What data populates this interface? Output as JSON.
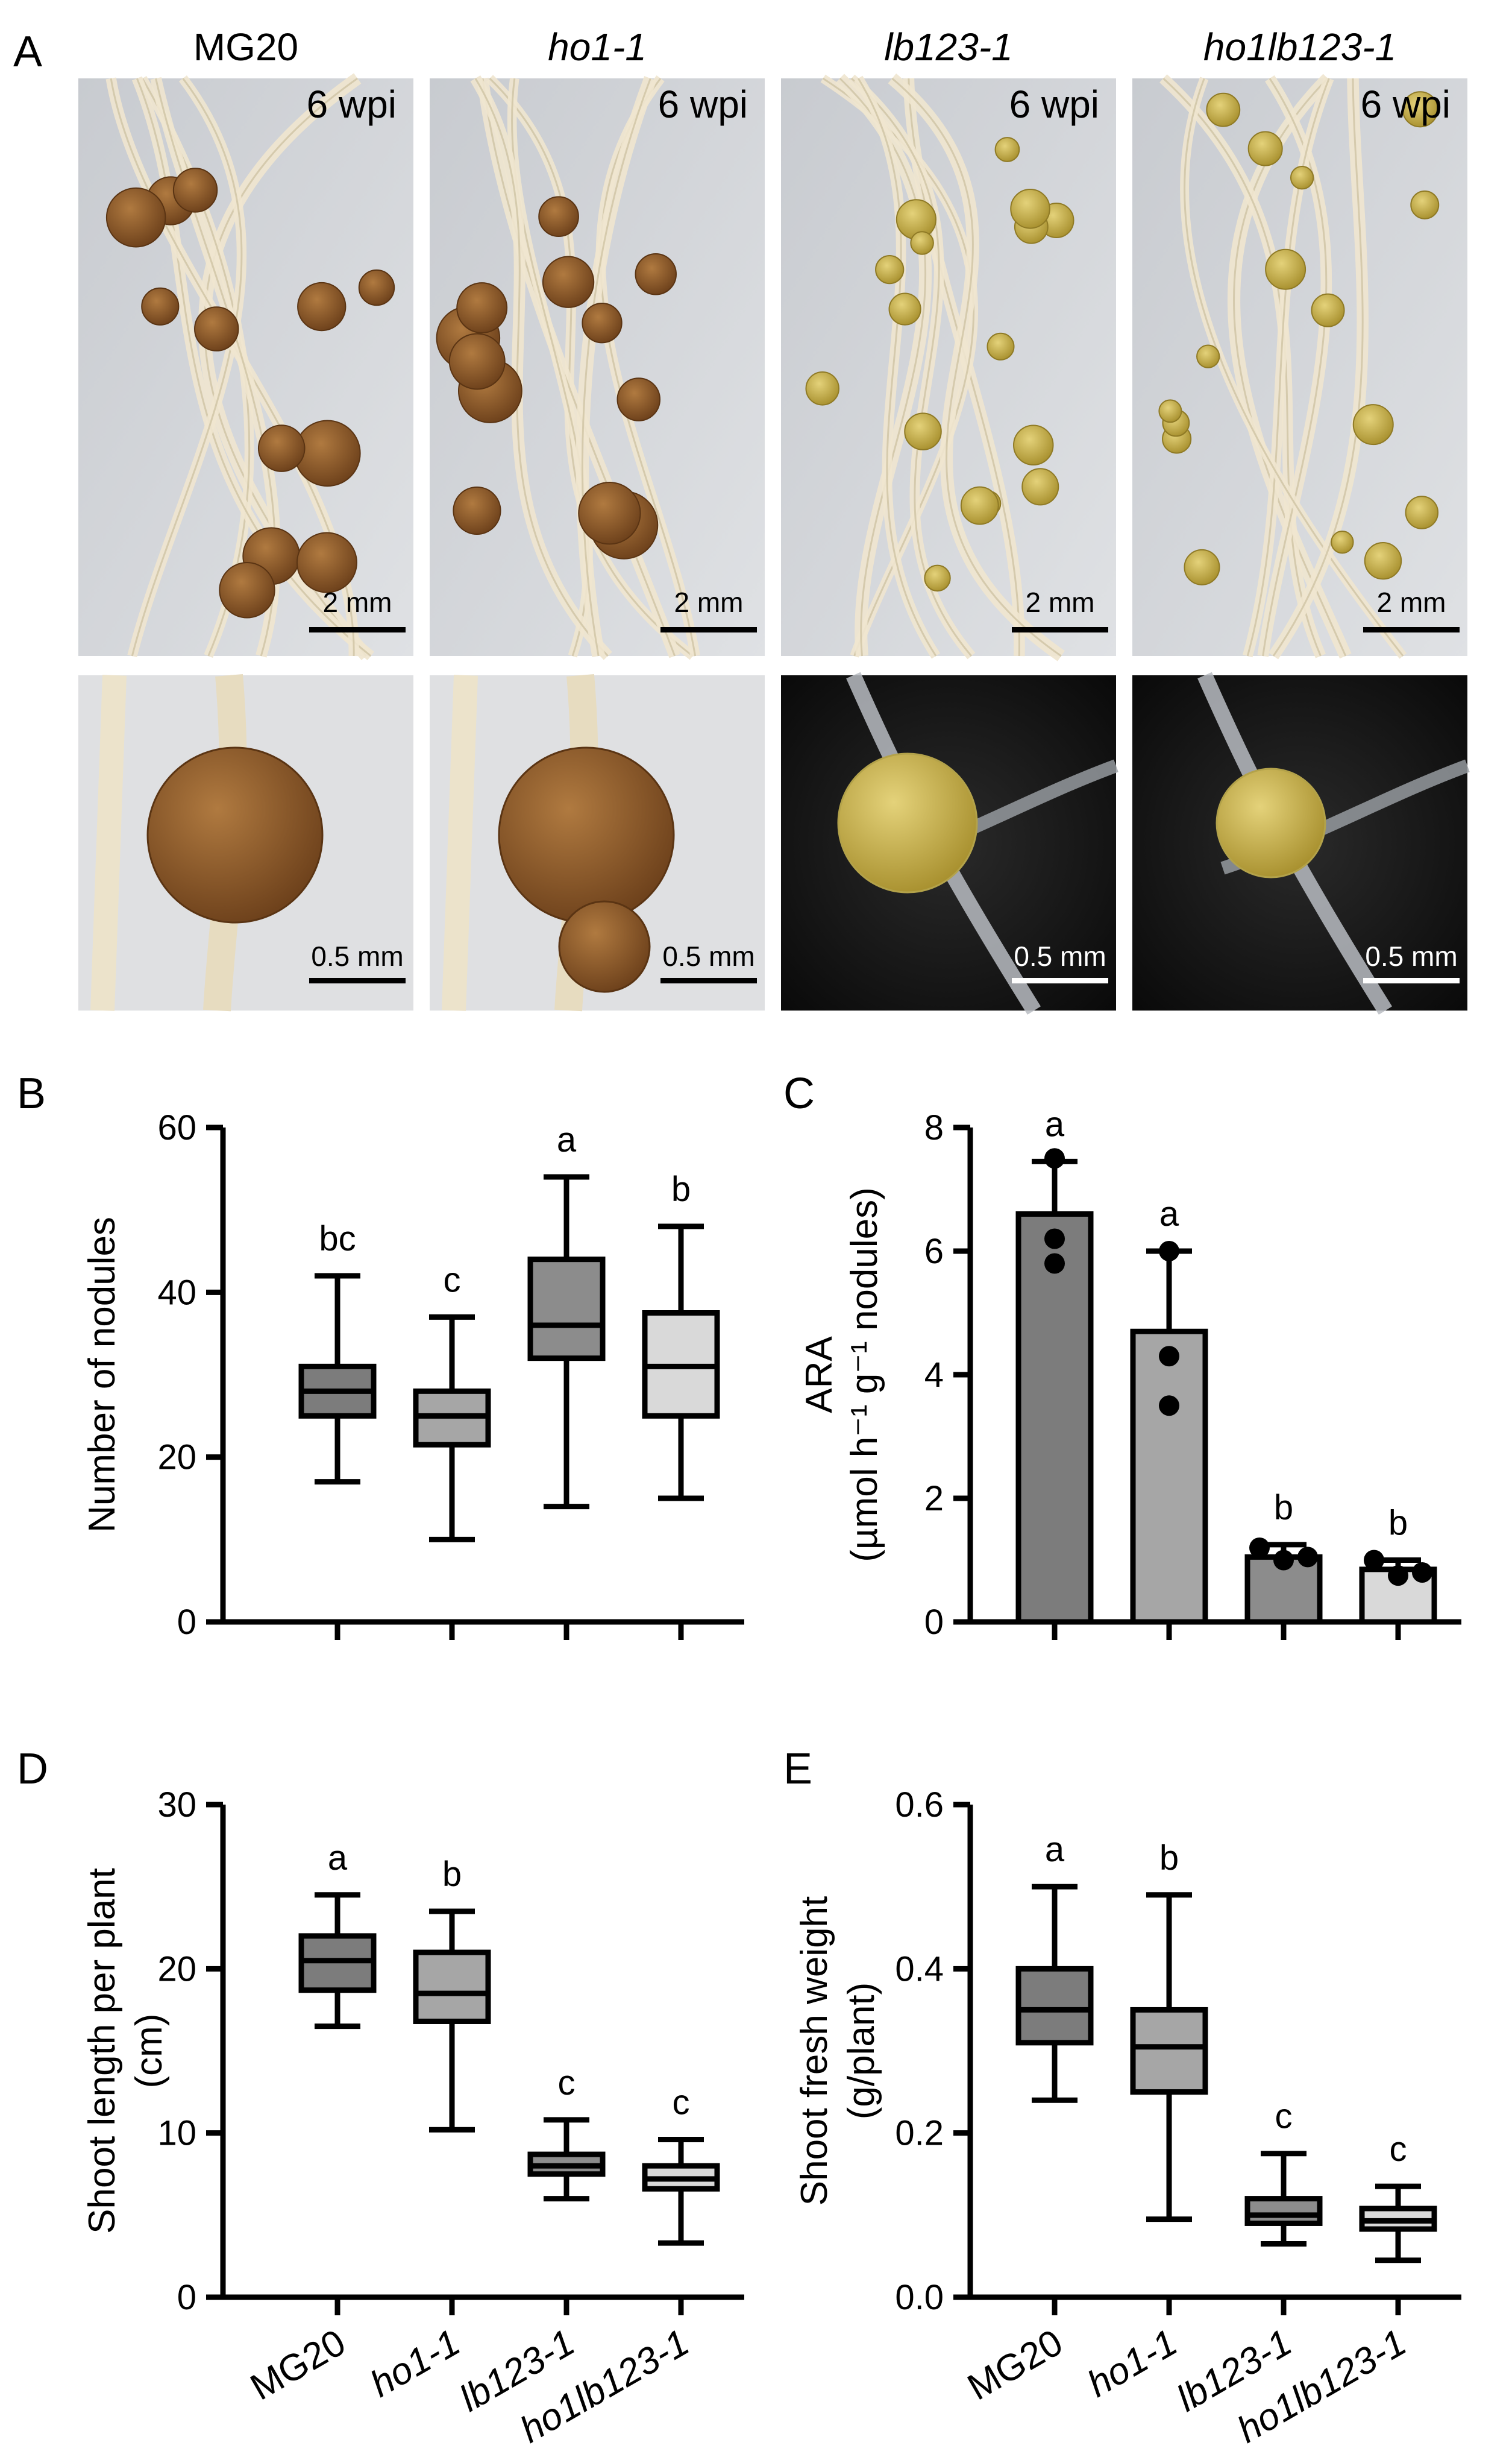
{
  "panels": {
    "A": {
      "letter": "A",
      "genotypes": [
        {
          "label": "MG20",
          "italic": false
        },
        {
          "label": "ho1-1",
          "italic": true
        },
        {
          "label": "lb123-1",
          "italic": true
        },
        {
          "label": "ho1lb123-1",
          "italic": true
        }
      ],
      "time_label": "6 wpi",
      "scale_top": "2 mm",
      "scale_bottom": "0.5 mm",
      "nodule_colors": {
        "MG20": "#8a5a2b",
        "ho1-1": "#8a5a2b",
        "lb123-1": "#c9b24a",
        "ho1lb123-1": "#c4ab3c"
      }
    },
    "B": {
      "letter": "B"
    },
    "C": {
      "letter": "C"
    },
    "D": {
      "letter": "D"
    },
    "E": {
      "letter": "E"
    }
  },
  "colors": {
    "MG20": "#7c7c7c",
    "ho1-1": "#a6a6a6",
    "lb123-1": "#8c8c8c",
    "ho1lb123-1": "#d9d9d9"
  },
  "chart_data": [
    {
      "panel": "B",
      "type": "box",
      "categories": [
        "MG20",
        "ho1-1",
        "lb123-1",
        "ho1lb123-1"
      ],
      "ylabel": "Number of nodules",
      "ylim": [
        0,
        60
      ],
      "yticks": [
        0,
        20,
        40,
        60
      ],
      "show_x_labels": false,
      "boxes": [
        {
          "min": 17,
          "q1": 25,
          "median": 28,
          "q3": 31,
          "max": 42
        },
        {
          "min": 10,
          "q1": 21.5,
          "median": 25,
          "q3": 28,
          "max": 37
        },
        {
          "min": 14,
          "q1": 32,
          "median": 36,
          "q3": 44,
          "max": 54
        },
        {
          "min": 15,
          "q1": 25,
          "median": 31,
          "q3": 37.5,
          "max": 48
        }
      ],
      "significance": [
        "bc",
        "c",
        "a",
        "b"
      ]
    },
    {
      "panel": "C",
      "type": "bar",
      "categories": [
        "MG20",
        "ho1-1",
        "lb123-1",
        "ho1lb123-1"
      ],
      "ylabel": "ARA",
      "ylabel2": "(µmol h⁻¹ g⁻¹ nodules)",
      "ylim": [
        0,
        8
      ],
      "yticks": [
        0,
        2,
        4,
        6,
        8
      ],
      "show_x_labels": false,
      "values": [
        6.6,
        4.7,
        1.05,
        0.85
      ],
      "error": [
        0.85,
        1.3,
        0.2,
        0.15
      ],
      "points": [
        [
          7.5,
          6.2,
          5.8
        ],
        [
          6.0,
          4.3,
          3.5
        ],
        [
          1.2,
          1.0,
          1.05
        ],
        [
          1.0,
          0.75,
          0.8
        ]
      ],
      "significance": [
        "a",
        "a",
        "b",
        "b"
      ]
    },
    {
      "panel": "D",
      "type": "box",
      "categories": [
        "MG20",
        "ho1-1",
        "lb123-1",
        "ho1lb123-1"
      ],
      "ylabel": "Shoot length per plant",
      "ylabel2": "(cm)",
      "ylim": [
        0,
        30
      ],
      "yticks": [
        0,
        10,
        20,
        30
      ],
      "show_x_labels": true,
      "boxes": [
        {
          "min": 16.5,
          "q1": 18.7,
          "median": 20.5,
          "q3": 22,
          "max": 24.5
        },
        {
          "min": 10.2,
          "q1": 16.8,
          "median": 18.5,
          "q3": 21,
          "max": 23.5
        },
        {
          "min": 6,
          "q1": 7.5,
          "median": 8,
          "q3": 8.7,
          "max": 10.8
        },
        {
          "min": 3.3,
          "q1": 6.6,
          "median": 7.2,
          "q3": 8,
          "max": 9.6
        }
      ],
      "significance": [
        "a",
        "b",
        "c",
        "c"
      ]
    },
    {
      "panel": "E",
      "type": "box",
      "categories": [
        "MG20",
        "ho1-1",
        "lb123-1",
        "ho1lb123-1"
      ],
      "ylabel": "Shoot  fresh weight",
      "ylabel2": "(g/plant)",
      "ylim": [
        0,
        0.6
      ],
      "yticks": [
        "0.0",
        "0.2",
        "0.4",
        "0.6"
      ],
      "show_x_labels": true,
      "boxes": [
        {
          "min": 0.24,
          "q1": 0.31,
          "median": 0.35,
          "q3": 0.4,
          "max": 0.5
        },
        {
          "min": 0.095,
          "q1": 0.25,
          "median": 0.305,
          "q3": 0.35,
          "max": 0.49
        },
        {
          "min": 0.065,
          "q1": 0.09,
          "median": 0.1,
          "q3": 0.12,
          "max": 0.175
        },
        {
          "min": 0.045,
          "q1": 0.083,
          "median": 0.093,
          "q3": 0.108,
          "max": 0.135
        }
      ],
      "significance": [
        "a",
        "b",
        "c",
        "c"
      ]
    }
  ]
}
